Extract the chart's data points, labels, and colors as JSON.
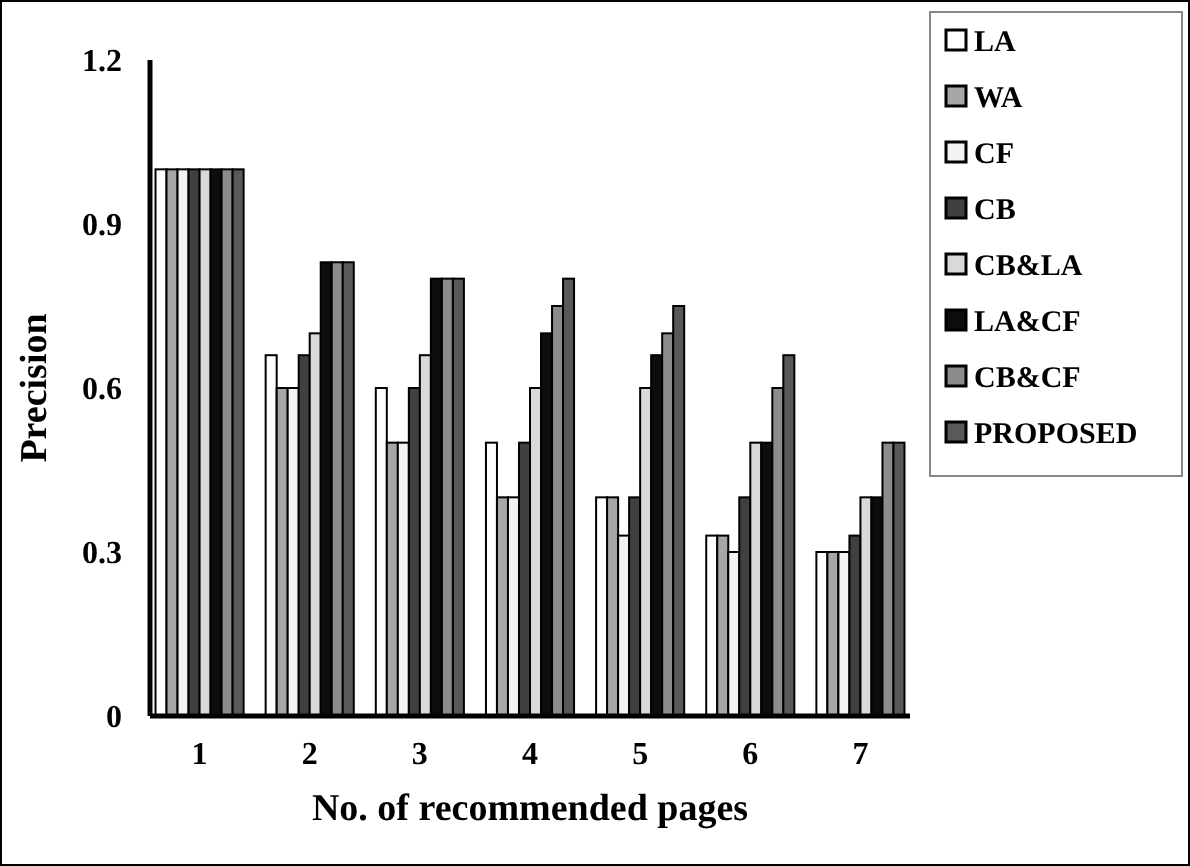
{
  "chart_data": {
    "type": "bar",
    "xlabel": "No. of recommended pages",
    "ylabel": "Precision",
    "categories": [
      "1",
      "2",
      "3",
      "4",
      "5",
      "6",
      "7"
    ],
    "series": [
      {
        "name": "LA",
        "color": "#ffffff",
        "values": [
          1.0,
          0.66,
          0.6,
          0.5,
          0.4,
          0.33,
          0.3
        ]
      },
      {
        "name": "WA",
        "color": "#a6a6a6",
        "values": [
          1.0,
          0.6,
          0.5,
          0.4,
          0.4,
          0.33,
          0.3
        ]
      },
      {
        "name": "CF",
        "color": "#f2f2f2",
        "values": [
          1.0,
          0.6,
          0.5,
          0.4,
          0.33,
          0.3,
          0.3
        ]
      },
      {
        "name": "CB",
        "color": "#404040",
        "values": [
          1.0,
          0.66,
          0.6,
          0.5,
          0.4,
          0.4,
          0.33
        ]
      },
      {
        "name": "CB&LA",
        "color": "#d9d9d9",
        "values": [
          1.0,
          0.7,
          0.66,
          0.6,
          0.6,
          0.5,
          0.4
        ]
      },
      {
        "name": "LA&CF",
        "color": "#0d0d0d",
        "values": [
          1.0,
          0.83,
          0.8,
          0.7,
          0.66,
          0.5,
          0.4
        ]
      },
      {
        "name": "CB&CF",
        "color": "#8c8c8c",
        "values": [
          1.0,
          0.83,
          0.8,
          0.75,
          0.7,
          0.6,
          0.5
        ]
      },
      {
        "name": "PROPOSED",
        "color": "#595959",
        "values": [
          1.0,
          0.83,
          0.8,
          0.8,
          0.75,
          0.66,
          0.5
        ]
      }
    ],
    "ylim": [
      0,
      1.2
    ],
    "yticks": [
      0,
      0.3,
      0.6,
      0.9,
      1.2
    ],
    "legend": "right",
    "grid": false
  }
}
